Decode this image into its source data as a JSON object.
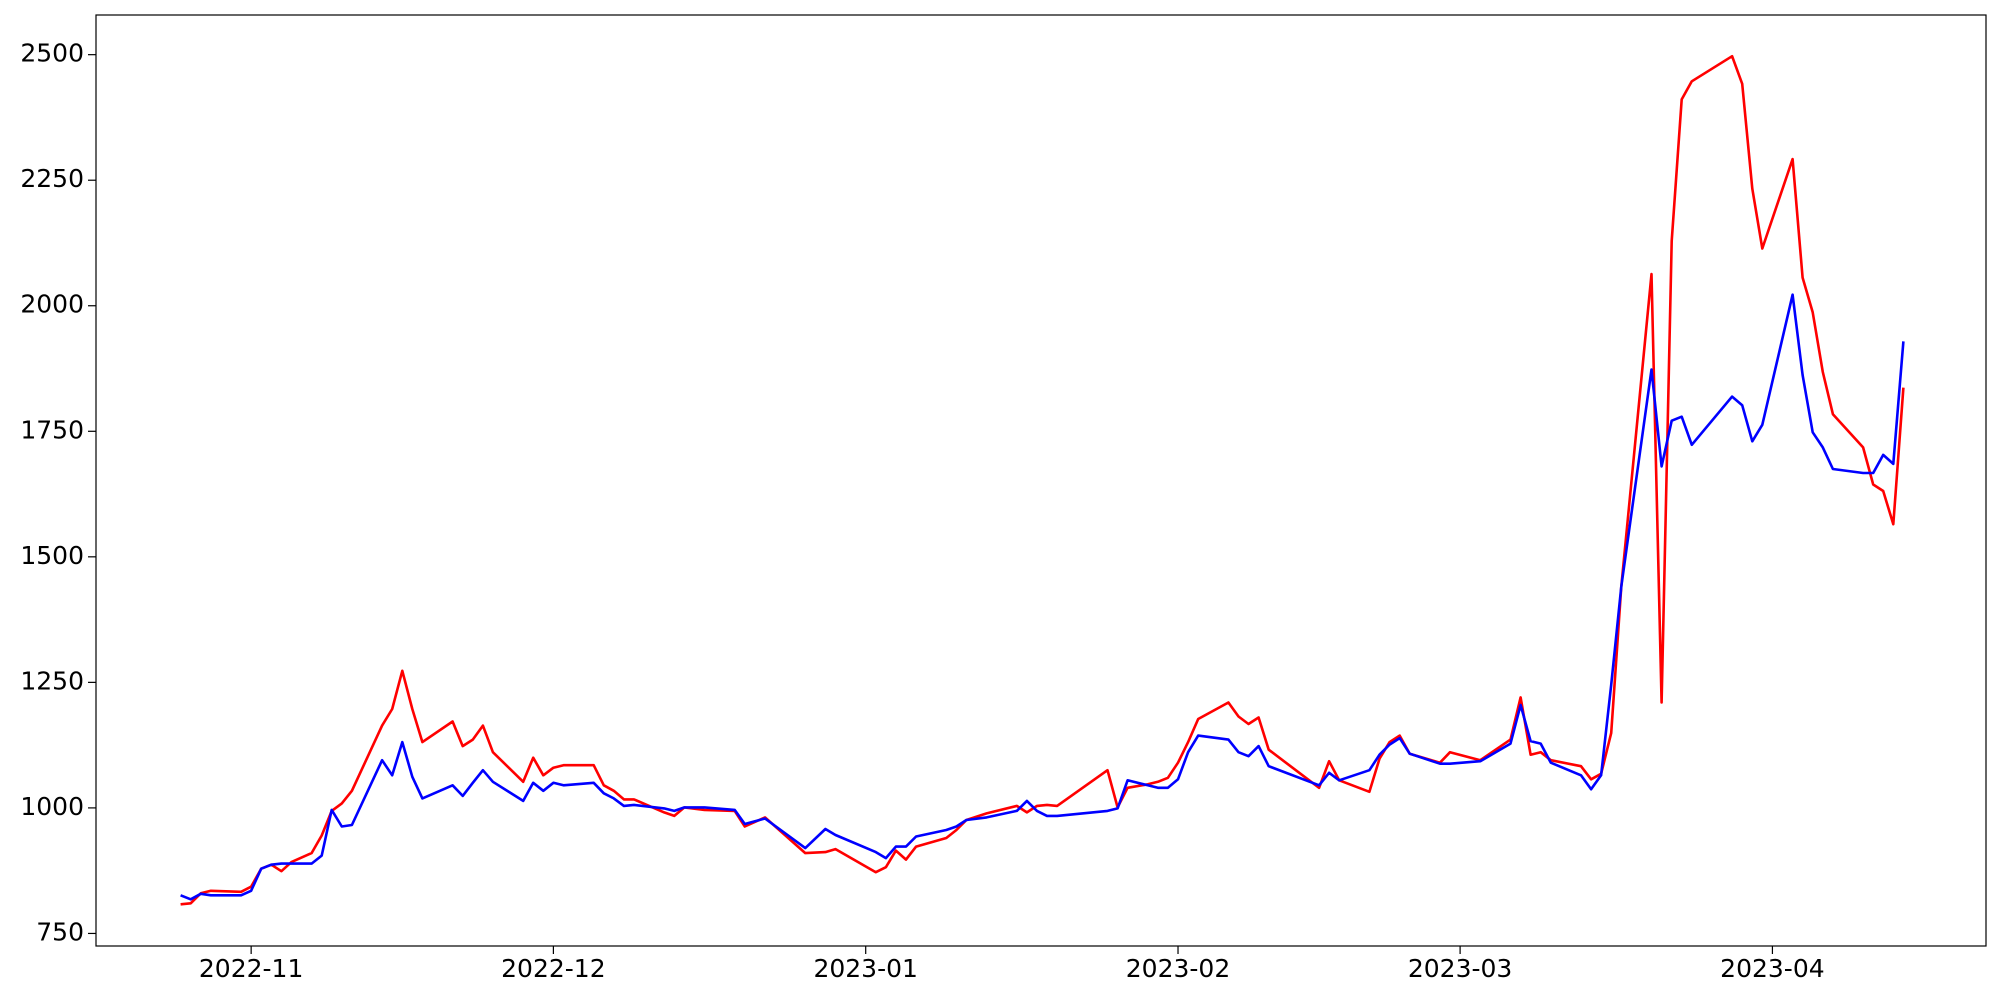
{
  "chart_data": {
    "type": "line",
    "x": [
      -7,
      -6,
      -5,
      -4,
      -1,
      0,
      1,
      2,
      3,
      4,
      6,
      7,
      8,
      9,
      10,
      13,
      14,
      15,
      16,
      17,
      20,
      21,
      22,
      23,
      24,
      27,
      28,
      29,
      30,
      31,
      34,
      35,
      36,
      37,
      38,
      41,
      42,
      43,
      45,
      48,
      49,
      51,
      55,
      57,
      58,
      62,
      63,
      64,
      65,
      66,
      69,
      70,
      71,
      73,
      76,
      77,
      78,
      79,
      80,
      85,
      86,
      87,
      89,
      90,
      91,
      92,
      93,
      94,
      97,
      98,
      99,
      100,
      101,
      106,
      107,
      108,
      111,
      112,
      113,
      114,
      115,
      118,
      119,
      122,
      125,
      126,
      127,
      128,
      129,
      132,
      133,
      134,
      135,
      136,
      139,
      140,
      141,
      142,
      143,
      147,
      148,
      149,
      150,
      153,
      154,
      155,
      156,
      157,
      160,
      161,
      162,
      163,
      164
    ],
    "series": [
      {
        "color": "#ff0000",
        "values": [
          808,
          810,
          830,
          835,
          833,
          843,
          879,
          887,
          874,
          892,
          910,
          945,
          994,
          1009,
          1034,
          1164,
          1197,
          1273,
          1197,
          1131,
          1172,
          1123,
          1136,
          1164,
          1111,
          1052,
          1100,
          1065,
          1080,
          1085,
          1085,
          1045,
          1034,
          1017,
          1017,
          991,
          984,
          1001,
          996,
          994,
          963,
          981,
          910,
          912,
          918,
          872,
          882,
          915,
          897,
          923,
          940,
          956,
          976,
          989,
          1004,
          991,
          1004,
          1006,
          1004,
          1075,
          1001,
          1040,
          1047,
          1052,
          1060,
          1090,
          1131,
          1177,
          1210,
          1182,
          1167,
          1180,
          1116,
          1040,
          1093,
          1055,
          1032,
          1098,
          1131,
          1144,
          1108,
          1090,
          1111,
          1095,
          1136,
          1220,
          1106,
          1111,
          1095,
          1083,
          1057,
          1068,
          1149,
          1441,
          2063,
          1210,
          2129,
          2411,
          2447,
          2497,
          2442,
          2233,
          2114,
          2292,
          2056,
          1987,
          1868,
          1784,
          1718,
          1644,
          1631,
          1565,
          1837
        ]
      },
      {
        "color": "#0000ff",
        "values": [
          826,
          818,
          829,
          826,
          826,
          835,
          879,
          887,
          889,
          889,
          889,
          905,
          996,
          963,
          966,
          1095,
          1065,
          1131,
          1062,
          1019,
          1045,
          1024,
          1050,
          1075,
          1052,
          1014,
          1050,
          1034,
          1050,
          1045,
          1050,
          1029,
          1019,
          1004,
          1006,
          999,
          994,
          1001,
          1001,
          996,
          968,
          979,
          920,
          958,
          946,
          912,
          900,
          923,
          923,
          943,
          956,
          963,
          976,
          981,
          994,
          1014,
          994,
          984,
          984,
          994,
          999,
          1055,
          1045,
          1040,
          1040,
          1057,
          1111,
          1144,
          1136,
          1111,
          1103,
          1123,
          1083,
          1045,
          1070,
          1055,
          1075,
          1106,
          1126,
          1139,
          1108,
          1088,
          1088,
          1093,
          1128,
          1205,
          1133,
          1128,
          1090,
          1065,
          1037,
          1065,
          1245,
          1441,
          1873,
          1680,
          1771,
          1779,
          1723,
          1819,
          1802,
          1730,
          1763,
          2022,
          1862,
          1748,
          1718,
          1675,
          1667,
          1667,
          1703,
          1685,
          1929
        ]
      }
    ],
    "xlim": [
      -15.4,
      172.2
    ],
    "xticks": [
      {
        "value": 0,
        "label": "2022-11"
      },
      {
        "value": 30,
        "label": "2022-12"
      },
      {
        "value": 61,
        "label": "2023-01"
      },
      {
        "value": 92,
        "label": "2023-02"
      },
      {
        "value": 120,
        "label": "2023-03"
      },
      {
        "value": 151,
        "label": "2023-04"
      }
    ],
    "ylim": [
      725,
      2579
    ],
    "yticks": [
      750,
      1000,
      1250,
      1500,
      1750,
      2000,
      2250,
      2500
    ]
  }
}
